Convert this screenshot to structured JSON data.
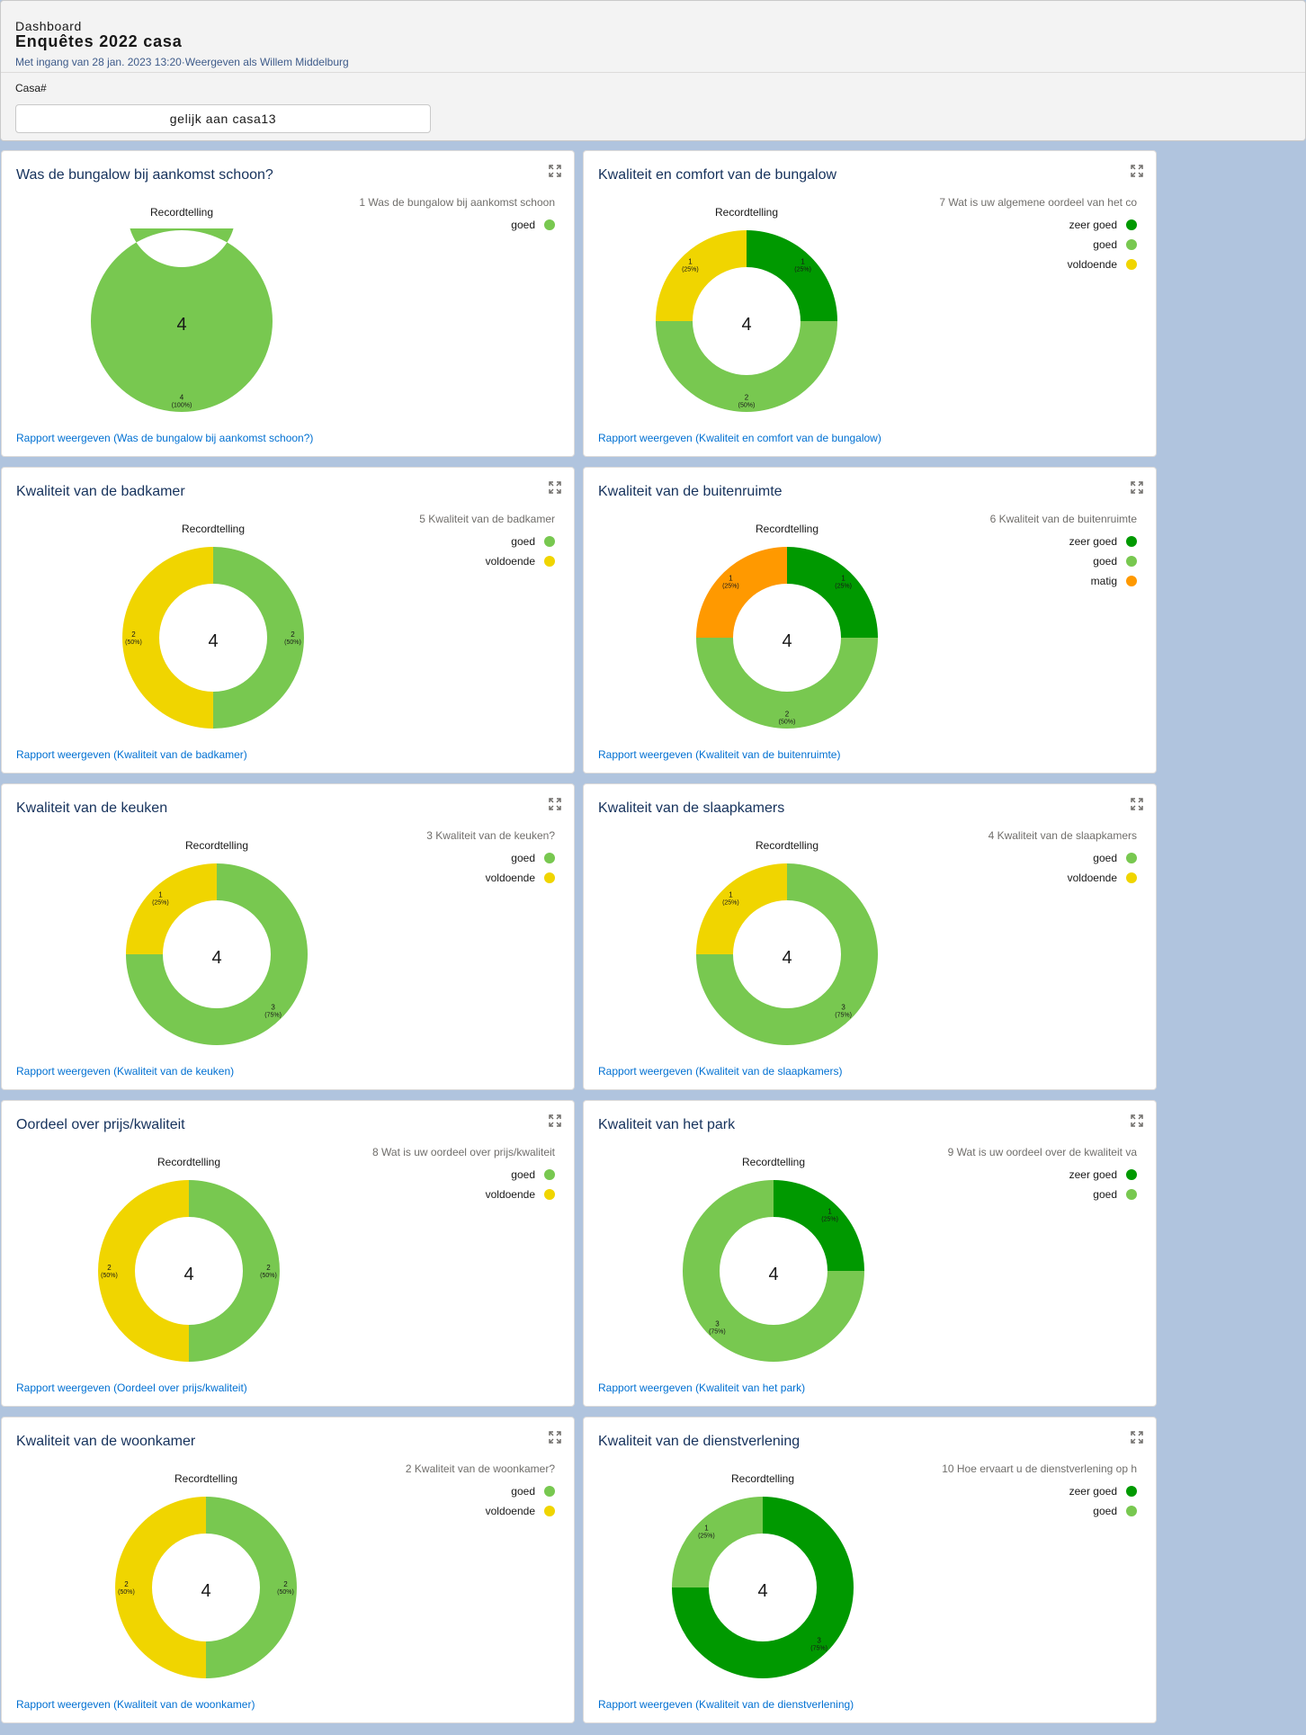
{
  "header": {
    "breadcrumb": "Dashboard",
    "title": "Enquêtes 2022 casa",
    "subtitle": "Met ingang van 28 jan. 2023 13:20·Weergeven als Willem Middelburg",
    "filter_label": "Casa#",
    "filter_value": "gelijk aan casa13"
  },
  "colors": {
    "zeer goed": "#009900",
    "goed": "#78c850",
    "voldoende": "#f0d500",
    "matig": "#ff9900"
  },
  "cards": [
    {
      "title": "Was de bungalow bij aankomst schoon?",
      "rec": "Recordtelling",
      "legend_title": "1 Was de bungalow bij aankomst schoon",
      "total": "4",
      "link": "Rapport weergeven (Was de bungalow bij aankomst schoon?)",
      "expand_icon": "expand-icon"
    },
    {
      "title": "Kwaliteit en comfort van de bungalow",
      "rec": "Recordtelling",
      "legend_title": "7 Wat is uw  algemene oordeel van het co",
      "total": "4",
      "link": "Rapport weergeven (Kwaliteit en comfort van de bungalow)",
      "expand_icon": "expand-icon"
    },
    {
      "title": "Kwaliteit van de badkamer",
      "rec": "Recordtelling",
      "legend_title": "5 Kwaliteit van de badkamer",
      "total": "4",
      "link": "Rapport weergeven (Kwaliteit van de badkamer)",
      "expand_icon": "expand-icon"
    },
    {
      "title": "Kwaliteit van de buitenruimte",
      "rec": "Recordtelling",
      "legend_title": "6 Kwaliteit van de buitenruimte",
      "total": "4",
      "link": "Rapport weergeven (Kwaliteit van de buitenruimte)",
      "expand_icon": "expand-icon"
    },
    {
      "title": "Kwaliteit van de keuken",
      "rec": "Recordtelling",
      "legend_title": "3 Kwaliteit van de keuken?",
      "total": "4",
      "link": "Rapport weergeven (Kwaliteit van de keuken)",
      "expand_icon": "expand-icon"
    },
    {
      "title": "Kwaliteit van de slaapkamers",
      "rec": "Recordtelling",
      "legend_title": "4 Kwaliteit van de slaapkamers",
      "total": "4",
      "link": "Rapport weergeven (Kwaliteit van de slaapkamers)",
      "expand_icon": "expand-icon"
    },
    {
      "title": "Oordeel over prijs/kwaliteit",
      "rec": "Recordtelling",
      "legend_title": "8 Wat is uw oordeel over prijs/kwaliteit",
      "total": "4",
      "link": "Rapport weergeven (Oordeel over prijs/kwaliteit)",
      "expand_icon": "expand-icon"
    },
    {
      "title": "Kwaliteit van het park",
      "rec": "Recordtelling",
      "legend_title": "9 Wat is uw oordeel over de kwaliteit va",
      "total": "4",
      "link": "Rapport weergeven (Kwaliteit van het park)",
      "expand_icon": "expand-icon"
    },
    {
      "title": "Kwaliteit van de woonkamer",
      "rec": "Recordtelling",
      "legend_title": "2 Kwaliteit van de woonkamer?",
      "total": "4",
      "link": "Rapport weergeven (Kwaliteit van de woonkamer)",
      "expand_icon": "expand-icon"
    },
    {
      "title": "Kwaliteit van de dienstverlening",
      "rec": "Recordtelling",
      "legend_title": "10 Hoe ervaart u de dienstverlening op h",
      "total": "4",
      "link": "Rapport weergeven (Kwaliteit van de dienstverlening)",
      "expand_icon": "expand-icon"
    }
  ],
  "chart_data": [
    {
      "type": "pie",
      "title": "Was de bungalow bij aankomst schoon?",
      "categories": [
        "goed"
      ],
      "values": [
        4
      ],
      "labels": [
        "4 (100%)"
      ]
    },
    {
      "type": "pie",
      "title": "Kwaliteit en comfort van de bungalow",
      "categories": [
        "zeer goed",
        "goed",
        "voldoende"
      ],
      "values": [
        1,
        2,
        1
      ],
      "labels": [
        "1 (25%)",
        "2 (50%)",
        "1 (25%)"
      ]
    },
    {
      "type": "pie",
      "title": "Kwaliteit van de badkamer",
      "categories": [
        "goed",
        "voldoende"
      ],
      "values": [
        2,
        2
      ],
      "labels": [
        "2 (50%)",
        "2 (50%)"
      ]
    },
    {
      "type": "pie",
      "title": "Kwaliteit van de buitenruimte",
      "categories": [
        "zeer goed",
        "goed",
        "matig"
      ],
      "values": [
        1,
        2,
        1
      ],
      "labels": [
        "1 (25%)",
        "2 (50%)",
        "1 (25%)"
      ]
    },
    {
      "type": "pie",
      "title": "Kwaliteit van de keuken",
      "categories": [
        "goed",
        "voldoende"
      ],
      "values": [
        3,
        1
      ],
      "labels": [
        "3 (75%)",
        "1 (25%)"
      ]
    },
    {
      "type": "pie",
      "title": "Kwaliteit van de slaapkamers",
      "categories": [
        "goed",
        "voldoende"
      ],
      "values": [
        3,
        1
      ],
      "labels": [
        "3 (75%)",
        "1 (25%)"
      ]
    },
    {
      "type": "pie",
      "title": "Oordeel over prijs/kwaliteit",
      "categories": [
        "goed",
        "voldoende"
      ],
      "values": [
        2,
        2
      ],
      "labels": [
        "2 (50%)",
        "2 (50%)"
      ]
    },
    {
      "type": "pie",
      "title": "Kwaliteit van het park",
      "categories": [
        "zeer goed",
        "goed"
      ],
      "values": [
        1,
        3
      ],
      "labels": [
        "1 (25%)",
        "3 (75%)"
      ]
    },
    {
      "type": "pie",
      "title": "Kwaliteit van de woonkamer",
      "categories": [
        "goed",
        "voldoende"
      ],
      "values": [
        2,
        2
      ],
      "labels": [
        "2 (50%)",
        "2 (50%)"
      ]
    },
    {
      "type": "pie",
      "title": "Kwaliteit van de dienstverlening",
      "categories": [
        "zeer goed",
        "goed"
      ],
      "values": [
        3,
        1
      ],
      "labels": [
        "3 (75%)",
        "1 (25%)"
      ]
    }
  ]
}
